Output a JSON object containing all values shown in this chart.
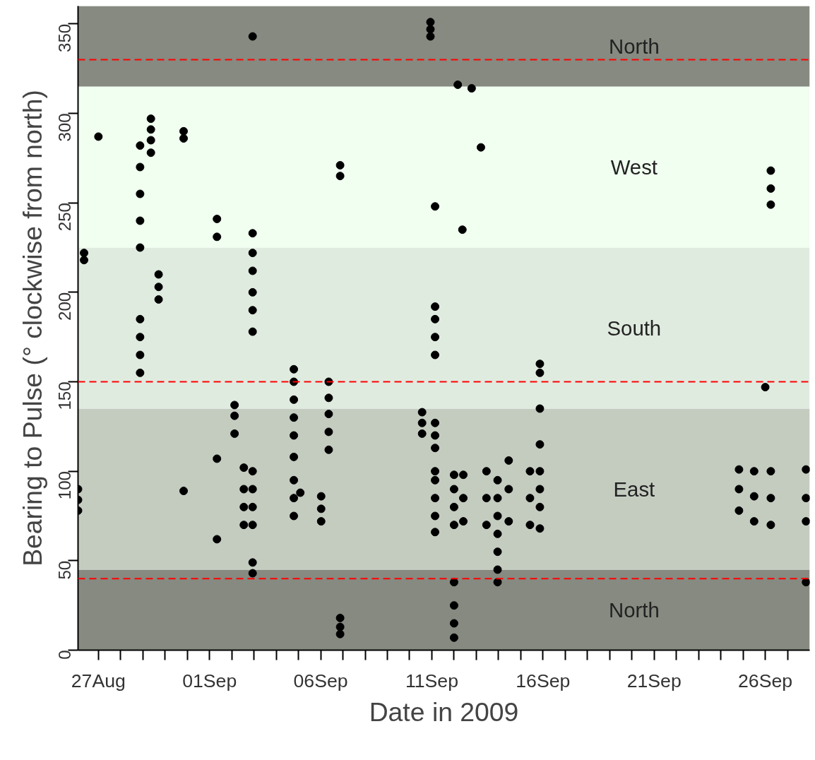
{
  "chart_data": {
    "type": "scatter",
    "xlabel": "Date in 2009",
    "ylabel": "Bearing to Pulse (° clockwise from north)",
    "xlim": [
      "2009-08-26T02:00",
      "2009-09-28T00:00"
    ],
    "ylim": [
      0,
      360
    ],
    "yticks": [
      0,
      50,
      100,
      150,
      200,
      250,
      300,
      350
    ],
    "xticks": [
      {
        "value": "2009-08-27",
        "label": "27Aug"
      },
      {
        "value": "2009-08-28",
        "label": null
      },
      {
        "value": "2009-08-29",
        "label": null
      },
      {
        "value": "2009-08-30",
        "label": null
      },
      {
        "value": "2009-08-31",
        "label": null
      },
      {
        "value": "2009-09-01",
        "label": "01Sep"
      },
      {
        "value": "2009-09-02",
        "label": null
      },
      {
        "value": "2009-09-03",
        "label": null
      },
      {
        "value": "2009-09-04",
        "label": null
      },
      {
        "value": "2009-09-05",
        "label": null
      },
      {
        "value": "2009-09-06",
        "label": "06Sep"
      },
      {
        "value": "2009-09-07",
        "label": null
      },
      {
        "value": "2009-09-08",
        "label": null
      },
      {
        "value": "2009-09-09",
        "label": null
      },
      {
        "value": "2009-09-10",
        "label": null
      },
      {
        "value": "2009-09-11",
        "label": "11Sep"
      },
      {
        "value": "2009-09-12",
        "label": null
      },
      {
        "value": "2009-09-13",
        "label": null
      },
      {
        "value": "2009-09-14",
        "label": null
      },
      {
        "value": "2009-09-15",
        "label": null
      },
      {
        "value": "2009-09-16",
        "label": "16Sep"
      },
      {
        "value": "2009-09-17",
        "label": null
      },
      {
        "value": "2009-09-18",
        "label": null
      },
      {
        "value": "2009-09-19",
        "label": null
      },
      {
        "value": "2009-09-20",
        "label": null
      },
      {
        "value": "2009-09-21",
        "label": "21Sep"
      },
      {
        "value": "2009-09-22",
        "label": null
      },
      {
        "value": "2009-09-23",
        "label": null
      },
      {
        "value": "2009-09-24",
        "label": null
      },
      {
        "value": "2009-09-25",
        "label": null
      },
      {
        "value": "2009-09-26",
        "label": "26Sep"
      },
      {
        "value": "2009-09-27",
        "label": null
      }
    ],
    "bands": [
      {
        "axis": "y",
        "from": 0,
        "to": 45,
        "label": "North",
        "color": "#868a80"
      },
      {
        "axis": "y",
        "from": 45,
        "to": 135,
        "label": "East",
        "color": "#c4ccc0"
      },
      {
        "axis": "y",
        "from": 135,
        "to": 225,
        "label": "South",
        "color": "#e0ebe0"
      },
      {
        "axis": "y",
        "from": 225,
        "to": 315,
        "label": "West",
        "color": "#f0fff0"
      },
      {
        "axis": "y",
        "from": 315,
        "to": 360,
        "label": "North",
        "color": "#868a80"
      }
    ],
    "ref_lines": [
      {
        "axis": "y",
        "value": 40,
        "color": "#ff0000",
        "line_style": "dashed"
      },
      {
        "axis": "y",
        "value": 150,
        "color": "#ff0000",
        "line_style": "dashed"
      },
      {
        "axis": "y",
        "value": 330,
        "color": "#ff0000",
        "line_style": "dashed"
      }
    ],
    "marker": "circle",
    "grid": false,
    "series": [
      {
        "color": "#000000",
        "x": [
          "2009-08-26T02:00",
          "2009-08-26T02:00",
          "2009-08-26T02:00",
          "2009-08-26T08:30",
          "2009-08-26T08:30",
          "2009-08-27T00:00",
          "2009-08-28T21:00",
          "2009-08-28T21:00",
          "2009-08-28T21:00",
          "2009-08-28T21:00",
          "2009-08-28T21:00",
          "2009-08-28T21:00",
          "2009-08-28T21:00",
          "2009-08-28T21:00",
          "2009-08-28T21:00",
          "2009-08-29T08:40",
          "2009-08-29T08:40",
          "2009-08-29T08:40",
          "2009-08-29T08:40",
          "2009-08-29T17:00",
          "2009-08-29T17:00",
          "2009-08-29T17:00",
          "2009-08-30T20:00",
          "2009-08-30T20:00",
          "2009-08-30T20:00",
          "2009-09-01T08:00",
          "2009-09-01T08:00",
          "2009-09-01T08:00",
          "2009-09-01T08:00",
          "2009-09-02T03:00",
          "2009-09-02T03:00",
          "2009-09-02T03:00",
          "2009-09-02T13:00",
          "2009-09-02T13:00",
          "2009-09-02T13:00",
          "2009-09-02T13:00",
          "2009-09-02T22:30",
          "2009-09-02T22:30",
          "2009-09-02T22:30",
          "2009-09-02T22:30",
          "2009-09-02T22:30",
          "2009-09-02T22:30",
          "2009-09-02T22:30",
          "2009-09-02T22:30",
          "2009-09-02T22:30",
          "2009-09-02T22:30",
          "2009-09-02T22:30",
          "2009-09-02T22:30",
          "2009-09-02T22:30",
          "2009-09-04T19:00",
          "2009-09-04T19:00",
          "2009-09-04T19:00",
          "2009-09-04T19:00",
          "2009-09-04T19:00",
          "2009-09-04T19:00",
          "2009-09-04T19:00",
          "2009-09-04T19:00",
          "2009-09-04T19:00",
          "2009-09-05T02:00",
          "2009-09-06T00:30",
          "2009-09-06T00:30",
          "2009-09-06T00:30",
          "2009-09-06T08:40",
          "2009-09-06T08:40",
          "2009-09-06T08:40",
          "2009-09-06T08:40",
          "2009-09-06T08:40",
          "2009-09-06T21:00",
          "2009-09-06T21:00",
          "2009-09-06T21:00",
          "2009-09-06T21:00",
          "2009-09-06T21:00",
          "2009-09-10T13:30",
          "2009-09-10T13:30",
          "2009-09-10T13:30",
          "2009-09-10T22:30",
          "2009-09-10T22:30",
          "2009-09-10T22:30",
          "2009-09-11T03:30",
          "2009-09-11T03:30",
          "2009-09-11T03:30",
          "2009-09-11T03:30",
          "2009-09-11T03:30",
          "2009-09-11T03:30",
          "2009-09-11T03:30",
          "2009-09-11T03:30",
          "2009-09-11T03:30",
          "2009-09-11T03:30",
          "2009-09-11T03:30",
          "2009-09-11T03:30",
          "2009-09-11T03:30",
          "2009-09-12T00:00",
          "2009-09-12T00:00",
          "2009-09-12T00:00",
          "2009-09-12T00:00",
          "2009-09-12T00:00",
          "2009-09-12T00:00",
          "2009-09-12T00:00",
          "2009-09-12T00:00",
          "2009-09-12T04:00",
          "2009-09-12T09:00",
          "2009-09-12T19:00",
          "2009-09-13T05:00",
          "2009-09-12T10:00",
          "2009-09-12T10:00",
          "2009-09-12T10:00",
          "2009-09-13T11:00",
          "2009-09-13T11:00",
          "2009-09-13T11:00",
          "2009-09-13T23:00",
          "2009-09-13T23:00",
          "2009-09-13T23:00",
          "2009-09-13T23:00",
          "2009-09-13T23:00",
          "2009-09-13T23:00",
          "2009-09-13T23:00",
          "2009-09-14T11:00",
          "2009-09-14T11:00",
          "2009-09-14T11:00",
          "2009-09-15T10:00",
          "2009-09-15T10:00",
          "2009-09-15T10:00",
          "2009-09-15T20:40",
          "2009-09-15T20:40",
          "2009-09-15T20:40",
          "2009-09-15T20:40",
          "2009-09-15T20:40",
          "2009-09-15T20:40",
          "2009-09-15T20:40",
          "2009-09-15T20:40",
          "2009-09-24T19:40",
          "2009-09-24T19:40",
          "2009-09-24T19:40",
          "2009-09-25T12:00",
          "2009-09-25T12:00",
          "2009-09-25T12:00",
          "2009-09-26T00:00",
          "2009-09-26T06:00",
          "2009-09-26T06:00",
          "2009-09-26T06:00",
          "2009-09-26T06:00",
          "2009-09-26T06:00",
          "2009-09-26T06:00",
          "2009-09-27T20:00",
          "2009-09-27T20:00",
          "2009-09-27T20:00",
          "2009-09-27T20:00"
        ],
        "values": [
          78,
          84,
          90,
          218,
          222,
          287,
          155,
          165,
          175,
          185,
          225,
          240,
          255,
          270,
          282,
          278,
          285,
          291,
          297,
          196,
          203,
          210,
          286,
          290,
          89,
          62,
          107,
          231,
          241,
          121,
          131,
          137,
          70,
          80,
          90,
          102,
          43,
          49,
          70,
          80,
          90,
          100,
          178,
          190,
          200,
          212,
          222,
          233,
          343,
          75,
          85,
          95,
          108,
          120,
          130,
          140,
          150,
          157,
          88,
          72,
          79,
          86,
          112,
          122,
          132,
          141,
          150,
          265,
          271,
          9,
          13,
          18,
          121,
          127,
          133,
          343,
          347,
          351,
          66,
          75,
          85,
          95,
          100,
          113,
          120,
          127,
          165,
          175,
          185,
          192,
          248,
          7,
          15,
          25,
          38,
          70,
          80,
          90,
          98,
          316,
          235,
          314,
          281,
          72,
          85,
          98,
          70,
          85,
          100,
          38,
          45,
          55,
          65,
          75,
          85,
          95,
          72,
          90,
          106,
          70,
          85,
          100,
          68,
          80,
          90,
          100,
          115,
          135,
          155,
          160,
          78,
          90,
          101,
          72,
          86,
          100,
          147,
          70,
          85,
          100,
          249,
          258,
          268,
          38,
          72,
          85,
          101
        ]
      }
    ]
  }
}
